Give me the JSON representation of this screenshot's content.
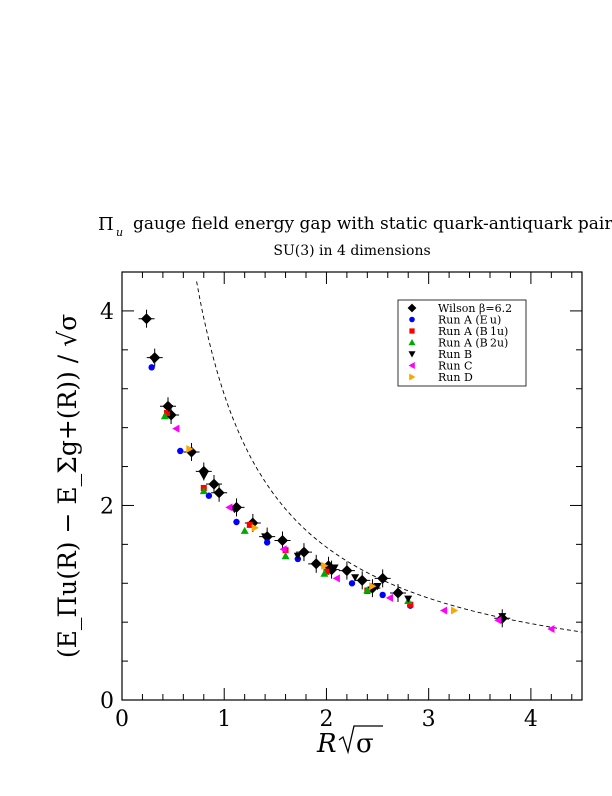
{
  "chart_data": {
    "type": "scatter",
    "title_symbol": "Π",
    "title_subscript": "u",
    "title_rest": "gauge field energy gap with static quark-antiquark pair",
    "subtitle": "SU(3) in 4 dimensions",
    "xlabel_main": "R",
    "xlabel_sqrt": "σ",
    "ylabel": "(E_Πu(R) − E_Σg+(R)) / √σ",
    "xlim": [
      0,
      4.5
    ],
    "ylim": [
      0,
      4.4
    ],
    "x_ticks": [
      0,
      1,
      2,
      3,
      4
    ],
    "y_ticks": [
      0,
      2,
      4
    ],
    "x_tick_labels": [
      "0",
      "1",
      "2",
      "3",
      "4"
    ],
    "y_tick_labels": [
      "0",
      "2",
      "4"
    ],
    "grid": false,
    "legend_position": "top-right",
    "curve": {
      "style": "dashed",
      "color": "#000000",
      "x": [
        0.73,
        0.9,
        1.0,
        1.25,
        1.5,
        1.75,
        2.0,
        2.5,
        3.0,
        3.5,
        4.0,
        4.5
      ]
    },
    "series": [
      {
        "name": "Wilson β=6.2",
        "marker": "diamond",
        "color": "#000000",
        "points": [
          [
            0.24,
            3.92
          ],
          [
            0.32,
            3.52
          ],
          [
            0.45,
            3.02
          ],
          [
            0.48,
            2.93
          ],
          [
            0.68,
            2.55
          ],
          [
            0.8,
            2.35
          ],
          [
            0.9,
            2.22
          ],
          [
            0.95,
            2.13
          ],
          [
            1.12,
            1.98
          ],
          [
            1.28,
            1.82
          ],
          [
            1.42,
            1.68
          ],
          [
            1.57,
            1.64
          ],
          [
            1.78,
            1.52
          ],
          [
            1.9,
            1.4
          ],
          [
            2.02,
            1.38
          ],
          [
            2.05,
            1.34
          ],
          [
            2.2,
            1.33
          ],
          [
            2.35,
            1.23
          ],
          [
            2.45,
            1.15
          ],
          [
            2.55,
            1.25
          ],
          [
            2.7,
            1.1
          ],
          [
            3.72,
            0.84
          ]
        ]
      },
      {
        "name": "Run A (E u)",
        "marker": "circle",
        "color": "#0000ff",
        "points": [
          [
            0.29,
            3.42
          ],
          [
            0.57,
            2.56
          ],
          [
            0.85,
            2.1
          ],
          [
            1.12,
            1.83
          ],
          [
            1.42,
            1.62
          ],
          [
            1.72,
            1.45
          ],
          [
            2.25,
            1.2
          ],
          [
            2.55,
            1.08
          ],
          [
            2.82,
            0.97
          ]
        ]
      },
      {
        "name": "Run A (B 1u)",
        "marker": "square",
        "color": "#ff0000",
        "points": [
          [
            0.44,
            2.95
          ],
          [
            0.8,
            2.18
          ],
          [
            1.25,
            1.8
          ],
          [
            1.6,
            1.54
          ],
          [
            2.0,
            1.32
          ],
          [
            2.4,
            1.12
          ],
          [
            2.82,
            0.98
          ]
        ]
      },
      {
        "name": "Run A (B 2u)",
        "marker": "triangle-up",
        "color": "#00aa00",
        "points": [
          [
            0.42,
            2.92
          ],
          [
            0.8,
            2.15
          ],
          [
            1.2,
            1.74
          ],
          [
            1.6,
            1.48
          ],
          [
            1.98,
            1.3
          ],
          [
            2.4,
            1.13
          ],
          [
            2.8,
            1.02
          ]
        ]
      },
      {
        "name": "Run B",
        "marker": "triangle-down",
        "color": "#000000",
        "points": [
          [
            0.31,
            3.5
          ],
          [
            0.46,
            3.0
          ],
          [
            0.8,
            2.3
          ],
          [
            1.1,
            1.96
          ],
          [
            1.4,
            1.68
          ],
          [
            1.72,
            1.48
          ],
          [
            2.08,
            1.36
          ],
          [
            2.28,
            1.26
          ],
          [
            2.5,
            1.17
          ],
          [
            2.8,
            1.04
          ],
          [
            3.72,
            0.86
          ]
        ]
      },
      {
        "name": "Run C",
        "marker": "triangle-left",
        "color": "#ff00ff",
        "points": [
          [
            0.53,
            2.79
          ],
          [
            1.05,
            1.98
          ],
          [
            1.58,
            1.55
          ],
          [
            2.1,
            1.25
          ],
          [
            2.62,
            1.05
          ],
          [
            3.15,
            0.92
          ],
          [
            3.68,
            0.82
          ],
          [
            4.2,
            0.73
          ]
        ]
      },
      {
        "name": "Run D",
        "marker": "triangle-right",
        "color": "#ffa500",
        "points": [
          [
            0.66,
            2.58
          ],
          [
            1.3,
            1.77
          ],
          [
            1.98,
            1.38
          ],
          [
            2.45,
            1.17
          ],
          [
            3.25,
            0.92
          ]
        ]
      }
    ]
  }
}
